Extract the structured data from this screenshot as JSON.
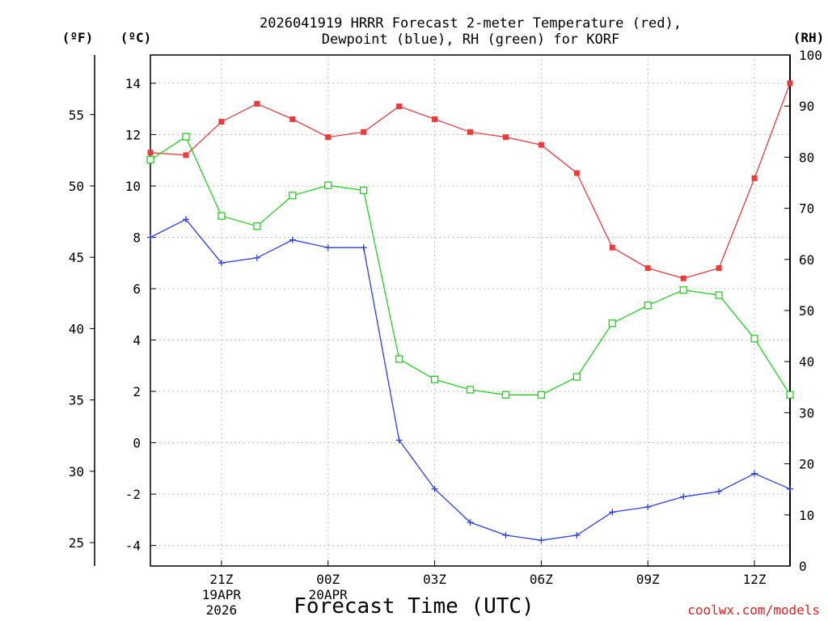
{
  "chart_data": {
    "type": "line",
    "title_line1": "2026041919 HRRR Forecast 2-meter Temperature (red),",
    "title_line2": "Dewpoint (blue), RH (green) for KORF",
    "xlabel": "Forecast Time (UTC)",
    "credit": "coolwx.com/models",
    "units": {
      "fahrenheit": "(ºF)",
      "celsius": "(ºC)",
      "rh": "(RH)"
    },
    "x_hours": [
      0,
      1,
      2,
      3,
      4,
      5,
      6,
      7,
      8,
      9,
      10,
      11,
      12,
      13,
      14,
      15,
      16,
      17,
      18
    ],
    "x_ticks": [
      {
        "hour": 2,
        "label": "21Z",
        "date": "19APR",
        "year": "2026"
      },
      {
        "hour": 5,
        "label": "00Z",
        "date": "20APR",
        "year": ""
      },
      {
        "hour": 8,
        "label": "03Z",
        "date": "",
        "year": ""
      },
      {
        "hour": 11,
        "label": "06Z",
        "date": "",
        "year": ""
      },
      {
        "hour": 14,
        "label": "09Z",
        "date": "",
        "year": ""
      },
      {
        "hour": 17,
        "label": "12Z",
        "date": "",
        "year": ""
      }
    ],
    "celsius_axis": {
      "min": -4.8,
      "max": 15.1,
      "ticks": [
        "-4",
        "-2",
        "0",
        "2",
        "4",
        "6",
        "8",
        "10",
        "12",
        "14"
      ]
    },
    "fahrenheit_axis": {
      "ticks": [
        "25",
        "30",
        "35",
        "40",
        "45",
        "50",
        "55"
      ]
    },
    "rh_axis": {
      "min": 0,
      "max": 100,
      "ticks": [
        "0",
        "10",
        "20",
        "30",
        "40",
        "50",
        "60",
        "70",
        "80",
        "90",
        "100"
      ]
    },
    "series": [
      {
        "name": "Temperature",
        "unit": "C",
        "color": "#e83c3c",
        "marker": "filled-square",
        "values": [
          11.3,
          11.2,
          12.5,
          13.2,
          12.6,
          11.9,
          12.1,
          13.1,
          12.6,
          12.1,
          11.9,
          11.6,
          10.5,
          7.6,
          6.8,
          6.4,
          6.8,
          10.3,
          14.0
        ]
      },
      {
        "name": "Dewpoint",
        "unit": "C",
        "color": "#2a3ee8",
        "marker": "plus",
        "values": [
          8.0,
          8.7,
          7.0,
          7.2,
          7.9,
          7.6,
          7.6,
          0.1,
          -1.8,
          -3.1,
          -3.6,
          -3.8,
          -3.6,
          -2.7,
          -2.5,
          -2.1,
          -1.9,
          -1.2,
          -1.8
        ]
      },
      {
        "name": "RH",
        "unit": "%",
        "color": "#22d022",
        "marker": "open-square",
        "values": [
          79.5,
          84,
          68.5,
          66.5,
          72.5,
          74.5,
          73.5,
          40.5,
          36.5,
          34.5,
          33.5,
          33.5,
          37,
          47.5,
          51,
          54,
          53,
          44.5,
          33.5
        ]
      }
    ]
  }
}
